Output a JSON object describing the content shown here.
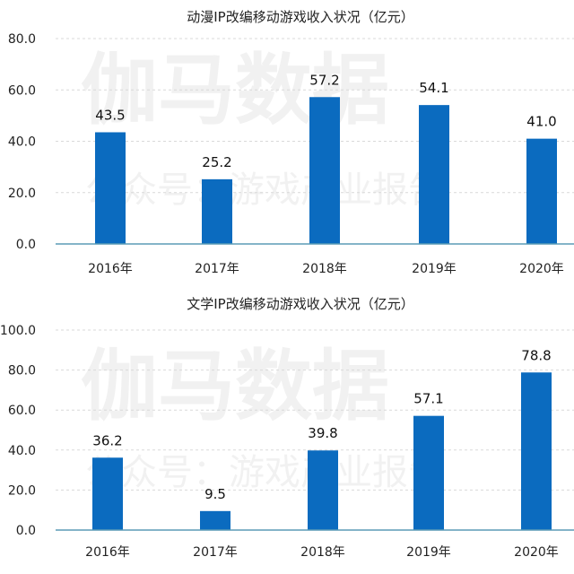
{
  "colors": {
    "bar": "#0b6bbf",
    "axis": "#5b9bb5",
    "grid": "#d9d9d9"
  },
  "watermark": {
    "main": "伽马数据",
    "sub": "公众号：游戏产业报告"
  },
  "chart_data": [
    {
      "type": "bar",
      "title": "动漫IP改编移动游戏收入状况（亿元）",
      "categories": [
        "2016年",
        "2017年",
        "2018年",
        "2019年",
        "2020年"
      ],
      "values": [
        43.5,
        25.2,
        57.2,
        54.1,
        41.0
      ],
      "value_labels": [
        "43.5",
        "25.2",
        "57.2",
        "54.1",
        "41.0"
      ],
      "ylim": [
        0,
        80
      ],
      "yticks": [
        "0.0",
        "20.0",
        "40.0",
        "60.0",
        "80.0"
      ],
      "grid": true
    },
    {
      "type": "bar",
      "title": "文学IP改编移动游戏收入状况（亿元）",
      "categories": [
        "2016年",
        "2017年",
        "2018年",
        "2019年",
        "2020年"
      ],
      "values": [
        36.2,
        9.5,
        39.8,
        57.1,
        78.8
      ],
      "value_labels": [
        "36.2",
        "9.5",
        "39.8",
        "57.1",
        "78.8"
      ],
      "ylim": [
        0,
        100
      ],
      "yticks": [
        "0.0",
        "20.0",
        "40.0",
        "60.0",
        "80.0",
        "100.0"
      ],
      "grid": true
    }
  ]
}
